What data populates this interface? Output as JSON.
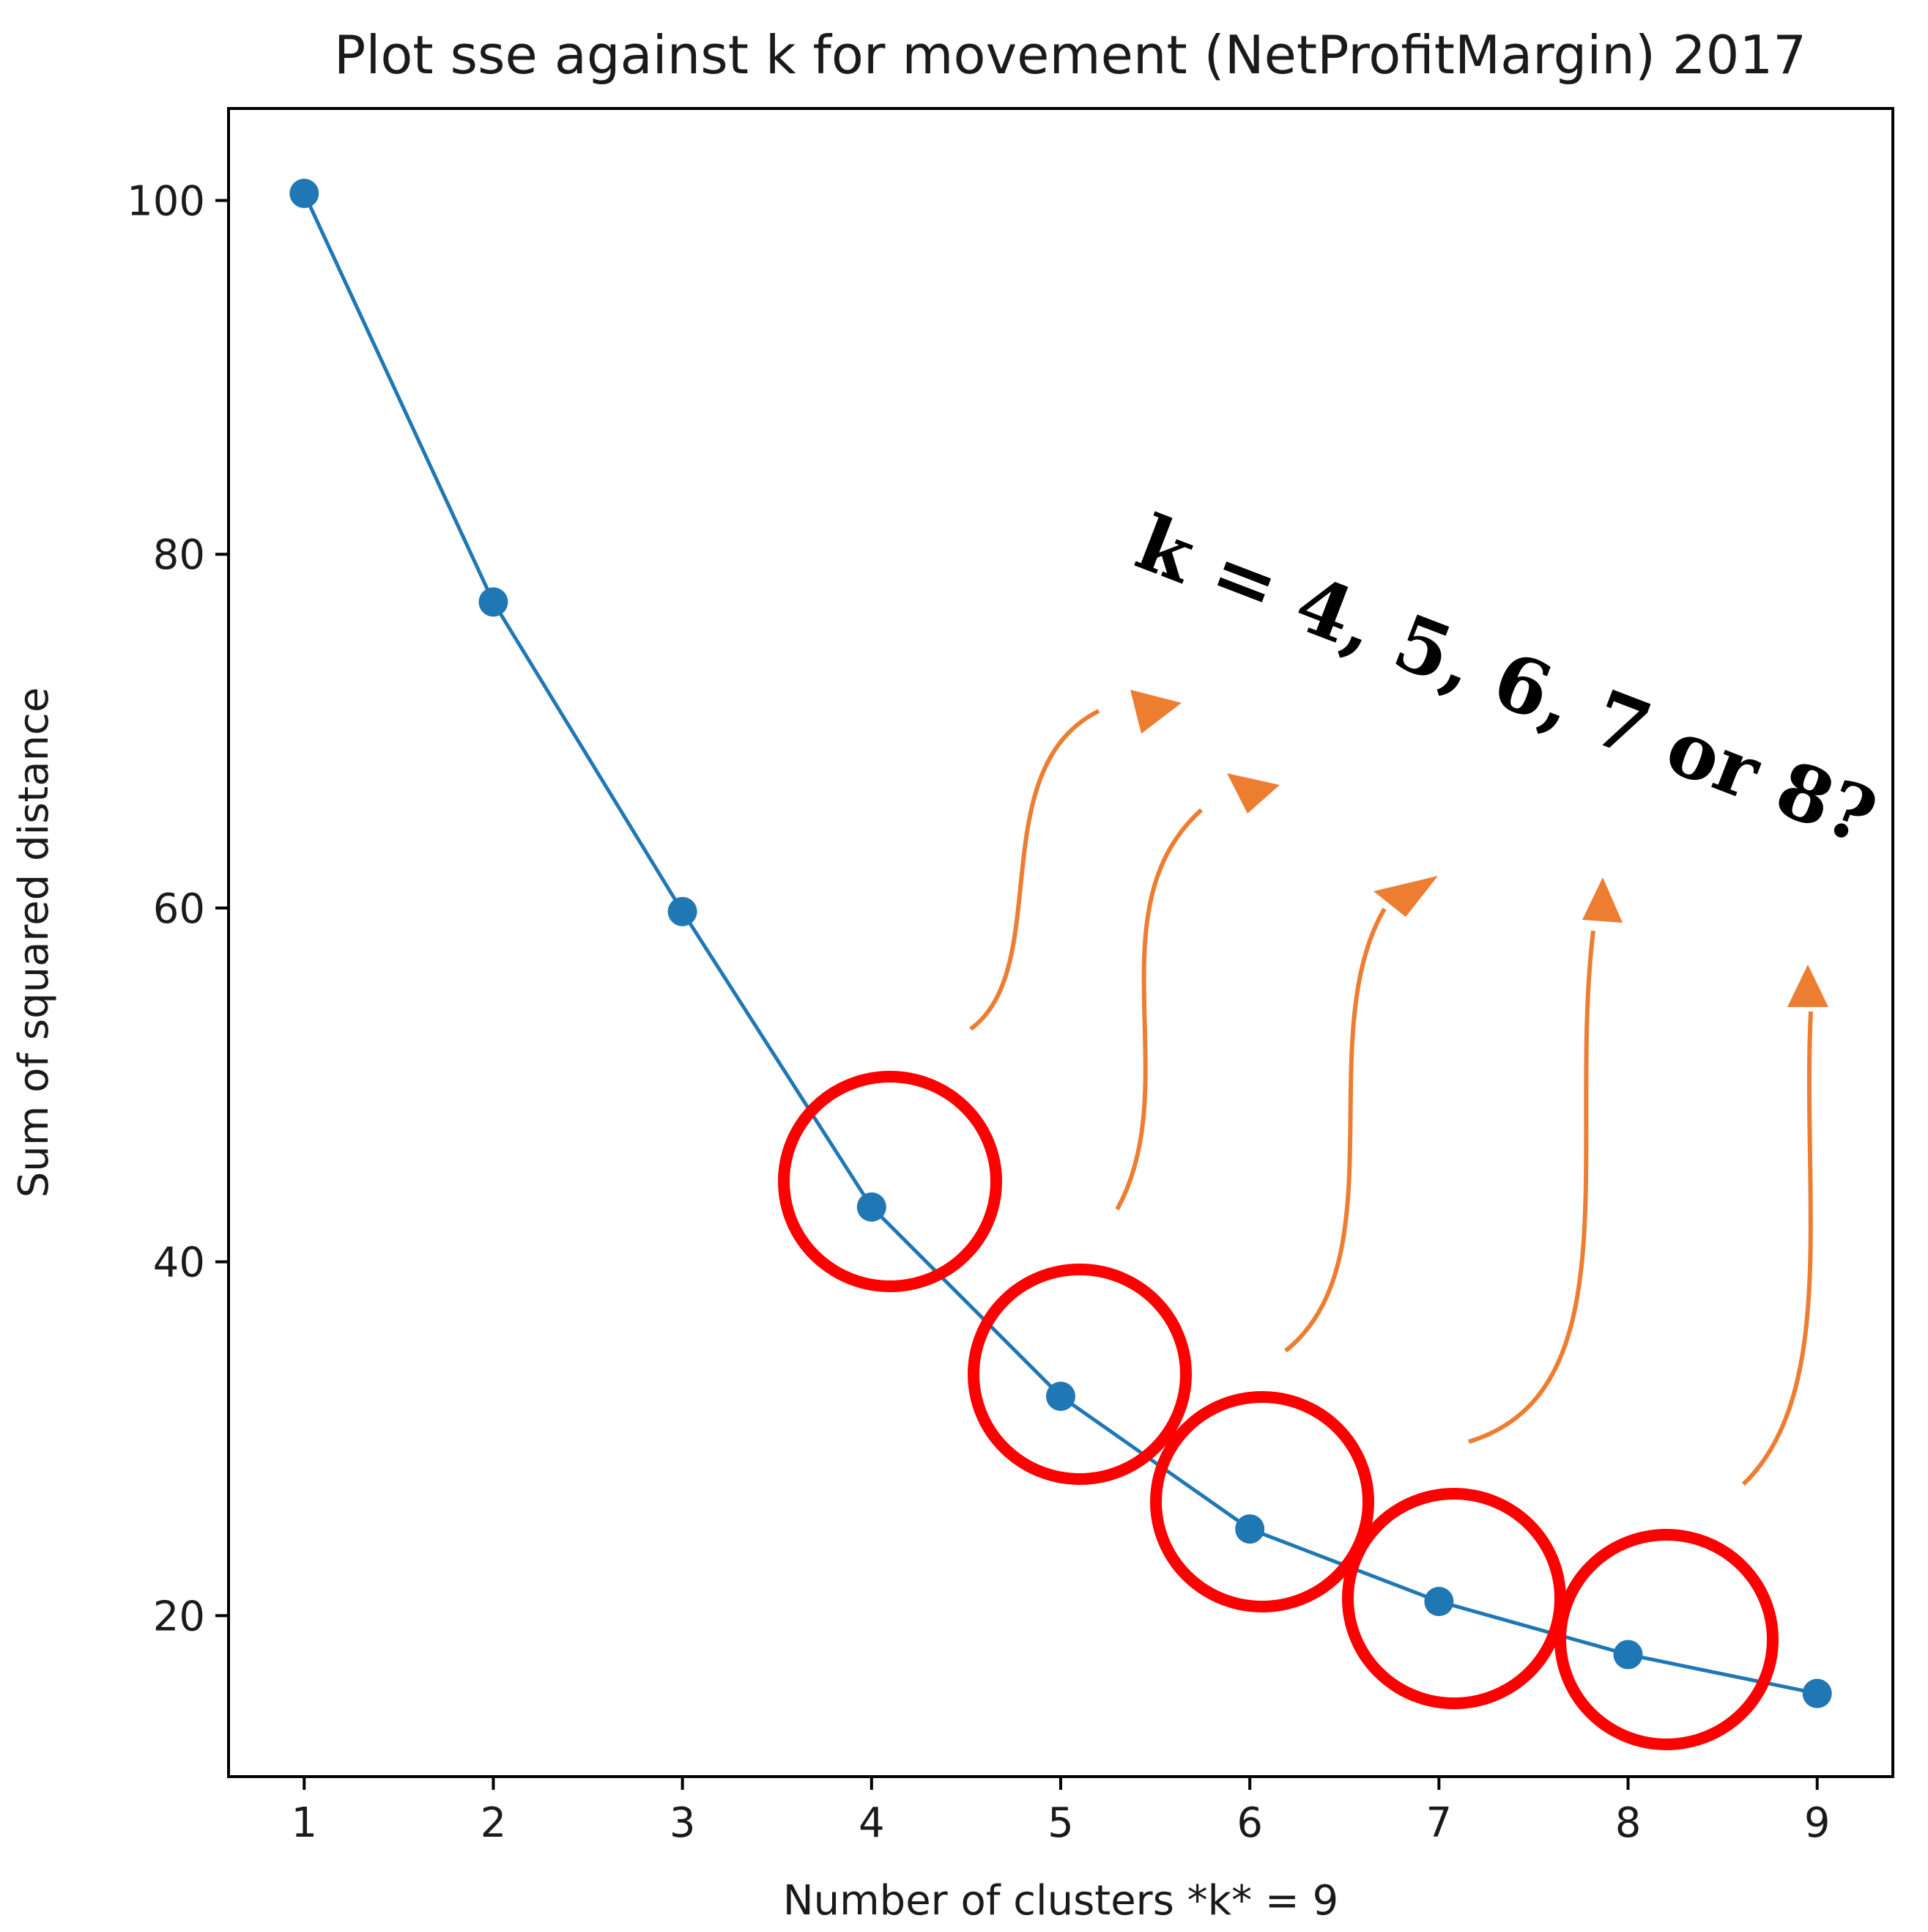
{
  "chart_data": {
    "type": "line",
    "title": "Plot sse against k for movement (NetProfitMargin) 2017",
    "xlabel": "Number of clusters *k* = 9",
    "ylabel": "Sum of squared distance",
    "x": [
      1,
      2,
      3,
      4,
      5,
      6,
      7,
      8,
      9
    ],
    "series": [
      {
        "name": "sse",
        "values": [
          100.4,
          77.3,
          59.8,
          43.1,
          32.4,
          24.9,
          20.8,
          17.8,
          15.6
        ],
        "color": "#1f77b4"
      }
    ],
    "xlim": [
      0.6,
      9.4
    ],
    "ylim": [
      10.9,
      105.2
    ],
    "xticks": [
      1,
      2,
      3,
      4,
      5,
      6,
      7,
      8,
      9
    ],
    "yticks": [
      20,
      40,
      60,
      80,
      100
    ],
    "grid": false,
    "annotation": {
      "text": "k = 4, 5, 6, 7 or 8?",
      "color": "#000000",
      "highlighted_k": [
        4,
        5,
        6,
        7,
        8
      ],
      "circle_color": "#ff0000",
      "arrow_color": "#ed7d31"
    }
  }
}
